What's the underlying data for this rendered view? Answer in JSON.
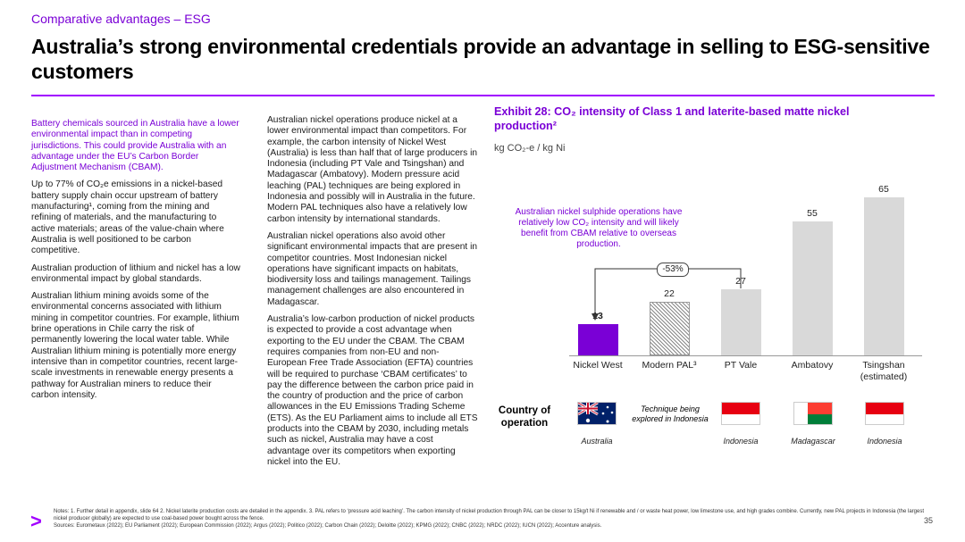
{
  "header": {
    "section": "Comparative advantages – ESG",
    "title": "Australia’s strong environmental credentials provide an advantage in selling to ESG-sensitive customers"
  },
  "left_column": {
    "intro": "Battery chemicals sourced in Australia have a lower environmental impact than in competing jurisdictions. This could provide Australia with an advantage under the EU’s Carbon Border Adjustment Mechanism (CBAM).",
    "p1": "Up to 77% of CO₂e emissions in a nickel-based battery supply chain occur upstream of battery manufacturing¹, coming from the mining and refining of materials, and the manufacturing to active materials; areas of the value-chain where Australia is well positioned to be carbon competitive.",
    "p2": "Australian production of lithium and nickel has a low environmental impact by global standards.",
    "p3": "Australian lithium mining avoids some of the environmental concerns associated with lithium mining in competitor countries. For example, lithium brine operations in Chile carry the risk of permanently lowering the local water table. While Australian lithium mining is potentially more energy intensive than in competitor countries, recent large-scale investments in renewable energy presents a pathway for Australian miners to reduce their carbon intensity."
  },
  "middle_column": {
    "p1": "Australian nickel operations produce nickel at a lower environmental impact than competitors. For example, the carbon intensity of Nickel West (Australia) is less than half that of large producers in Indonesia (including PT Vale and Tsingshan) and Madagascar (Ambatovy). Modern pressure acid leaching (PAL) techniques are being explored in Indonesia and possibly will in Australia in the future. Modern PAL techniques also have a relatively low carbon intensity by international standards.",
    "p2": "Australian nickel operations also avoid other significant environmental impacts that are present in competitor countries. Most Indonesian nickel operations have significant impacts on habitats, biodiversity loss and tailings management. Tailings management challenges are also encountered in Madagascar.",
    "p3": "Australia’s low-carbon production of nickel products is expected to provide a cost advantage when exporting to the EU under the CBAM. The CBAM requires companies from non-EU and non-European Free Trade Association (EFTA) countries will be required to purchase ‘CBAM certificates’ to pay the difference between the carbon price paid in the country of production and the price of carbon allowances in the EU Emissions Trading Scheme (ETS). As the EU Parliament aims to include all ETS products into the CBAM by 2030, including metals such as nickel, Australia may have a cost advantage over its competitors when exporting nickel into the EU."
  },
  "exhibit": {
    "title": "Exhibit 28: CO₂ intensity of Class 1 and laterite-based matte nickel production²",
    "unit": "kg CO₂-e / kg Ni",
    "callout": "Australian nickel sulphide operations have relatively low CO₂ intensity and will likely benefit from CBAM relative to overseas production.",
    "comparison_label": "-53%",
    "country_heading": "Country of operation",
    "technique_note": "Technique being explored in Indonesia",
    "countries": [
      "Australia",
      "",
      "Indonesia",
      "Madagascar",
      "Indonesia"
    ]
  },
  "chart_data": {
    "type": "bar",
    "categories": [
      "Nickel West",
      "Modern PAL³",
      "PT Vale",
      "Ambatovy",
      "Tsingshan (estimated)"
    ],
    "values": [
      13,
      22,
      27,
      55,
      65
    ],
    "ylabel": "kg CO₂-e / kg Ni",
    "ylim": [
      0,
      65
    ],
    "grid": false,
    "colors": [
      "#7a00d6",
      "#hatched-grey",
      "#d9d9d9",
      "#d9d9d9",
      "#d9d9d9"
    ]
  },
  "footer": {
    "notes": "Notes: 1. Further detail in appendix, slide 64 2. Nickel laterite production costs are detailed in the appendix. 3. PAL refers to ‘pressure acid leaching’. The carbon intensity of nickel production through PAL can be closer to 15kg/t Ni if renewable and / or waste heat power, low limestone use, and high grades combine. Currently, new PAL projects in Indonesia (the largest nickel producer globally) are expected to use coal-based power bought across the fence.",
    "sources": "Sources: Eurometaux (2022); EU Parliament (2022); European Commission (2022); Argus (2022); Politico (2022); Carbon Chain (2022); Deloitte (2022); KPMG (2022); CNBC (2022); NRDC (2022); IUCN (2022); Accenture analysis.",
    "logo": ">",
    "page": "35"
  }
}
